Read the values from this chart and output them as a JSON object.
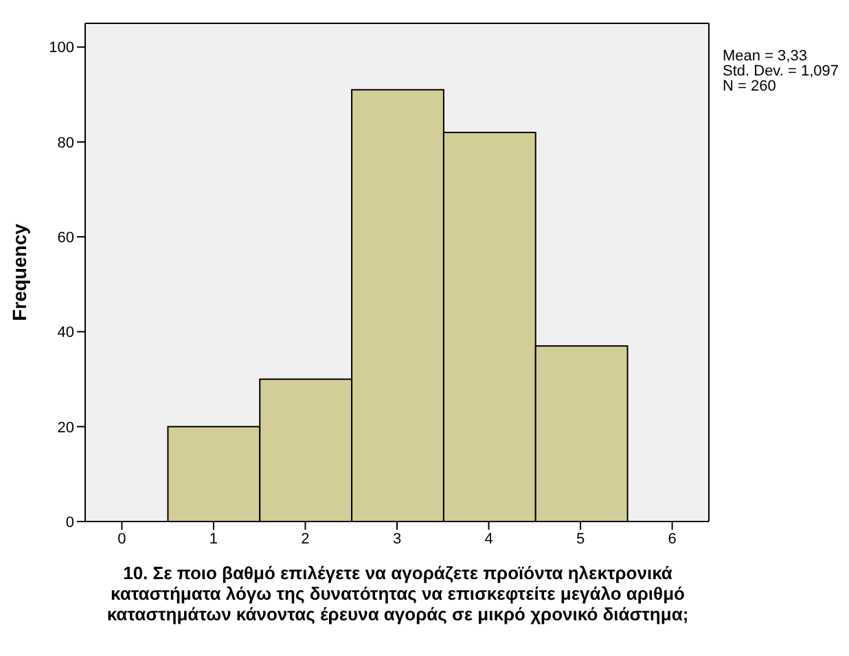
{
  "chart_data": {
    "type": "histogram",
    "xlabel": "10.  Σε ποιο βαθμό επιλέγετε να αγοράζετε προϊόντα ηλεκτρονικά καταστήματα λόγω της δυνατότητας να επισκεφτείτε μεγάλο αριθμό καταστημάτων κάνοντας έρευνα αγοράς σε μικρό χρονικό διάστημα;",
    "ylabel": "Frequency",
    "bins": [
      0.5,
      1.5,
      2.5,
      3.5,
      4.5,
      5.5
    ],
    "values": [
      20,
      30,
      91,
      82,
      37
    ],
    "color": "#d3ce97",
    "xlim": [
      -0.4,
      6.4
    ],
    "xticks": [
      0,
      1,
      2,
      3,
      4,
      5,
      6
    ],
    "ylim": [
      0,
      105
    ],
    "yticks": [
      0,
      20,
      40,
      60,
      80,
      100
    ],
    "annotations": [
      "Mean = 3,33",
      "Std. Dev. = 1,097",
      "N = 260"
    ]
  }
}
